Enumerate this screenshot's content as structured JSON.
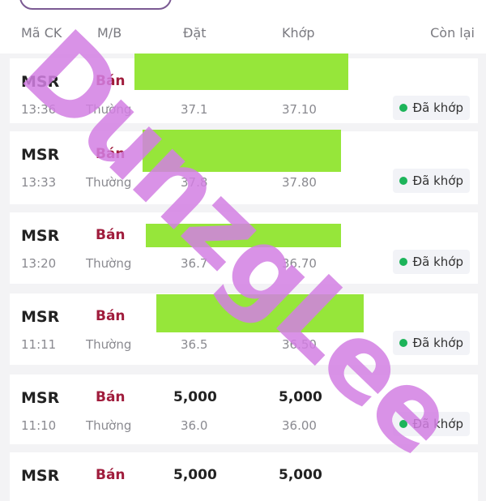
{
  "header": {
    "col_symbol": "Mã CK",
    "col_side": "M/B",
    "col_order": "Đặt",
    "col_matched": "Khớp",
    "col_remaining": "Còn lại"
  },
  "orders": [
    {
      "symbol": "MSR",
      "side": "Bán",
      "order_qty": "",
      "matched_qty": "",
      "time": "13:36",
      "type": "Thường",
      "order_price": "37.1",
      "matched_price": "37.10",
      "status": "Đã khớp"
    },
    {
      "symbol": "MSR",
      "side": "Bán",
      "order_qty": "",
      "matched_qty": "",
      "time": "13:33",
      "type": "Thường",
      "order_price": "37.8",
      "matched_price": "37.80",
      "status": "Đã khớp"
    },
    {
      "symbol": "MSR",
      "side": "Bán",
      "order_qty": "",
      "matched_qty": "",
      "time": "13:20",
      "type": "Thường",
      "order_price": "36.7",
      "matched_price": "36.70",
      "status": "Đã khớp"
    },
    {
      "symbol": "MSR",
      "side": "Bán",
      "order_qty": "",
      "matched_qty": "",
      "time": "11:11",
      "type": "Thường",
      "order_price": "36.5",
      "matched_price": "36.50",
      "status": "Đã khớp"
    },
    {
      "symbol": "MSR",
      "side": "Bán",
      "order_qty": "5,000",
      "matched_qty": "5,000",
      "time": "11:10",
      "type": "Thường",
      "order_price": "36.0",
      "matched_price": "36.00",
      "status": "Đã khớp"
    },
    {
      "symbol": "MSR",
      "side": "Bán",
      "order_qty": "5,000",
      "matched_qty": "5,000",
      "time": "",
      "type": "",
      "order_price": "",
      "matched_price": "",
      "status": ""
    }
  ],
  "watermark": "DunzgLee",
  "colors": {
    "sell": "#a01c3c",
    "matched_dot": "#1db45a",
    "redaction": "#96e63a",
    "watermark": "#d27fe3"
  }
}
